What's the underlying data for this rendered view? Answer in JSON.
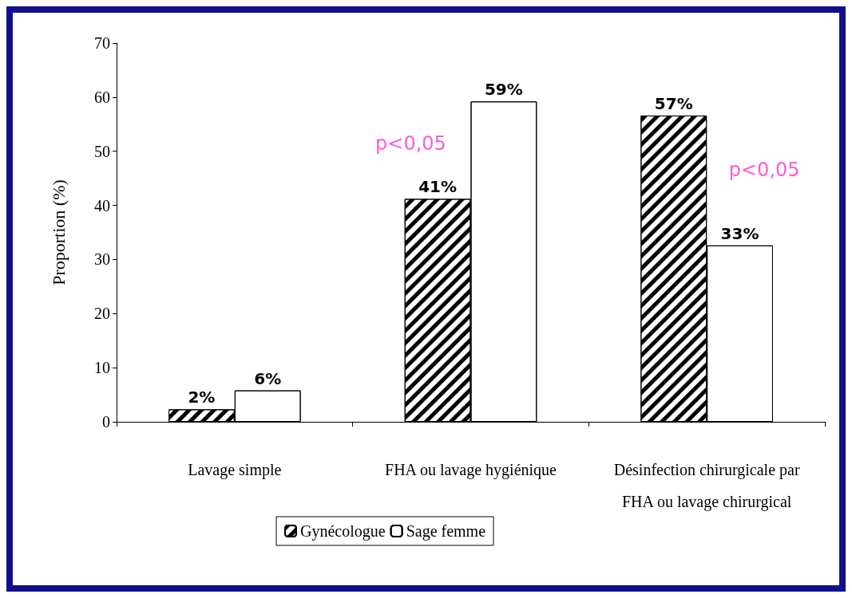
{
  "chart_data": {
    "type": "bar",
    "ylabel": "Proportion (%)",
    "categories": [
      "Lavage simple",
      "FHA ou lavage hygiénique",
      "Désinfection chirurgicale par\nFHA ou lavage chirurgical"
    ],
    "series": [
      {
        "name": "Gynécologue",
        "color": "#000000",
        "values": [
          2.3,
          41.2,
          56.6
        ],
        "value_labels": [
          "2%",
          "41%",
          "57%"
        ]
      },
      {
        "name": "Sage femme",
        "color": "#ffffff",
        "values": [
          5.8,
          59.2,
          32.6
        ],
        "value_labels": [
          "6%",
          "59%",
          "33%"
        ]
      }
    ],
    "ylim": [
      0,
      70
    ],
    "yticks": [
      0,
      10,
      20,
      30,
      40,
      50,
      60,
      70
    ],
    "grid": false,
    "legend": "bottom",
    "annotations": [
      {
        "text": "p<0,05",
        "x": "FHA ou lavage hygiénique",
        "y": 51.5
      },
      {
        "text": "p<0,05",
        "x": "Désinfection chirurgicale par\nFHA ou lavage chirurgical",
        "y": 46.5
      }
    ]
  }
}
